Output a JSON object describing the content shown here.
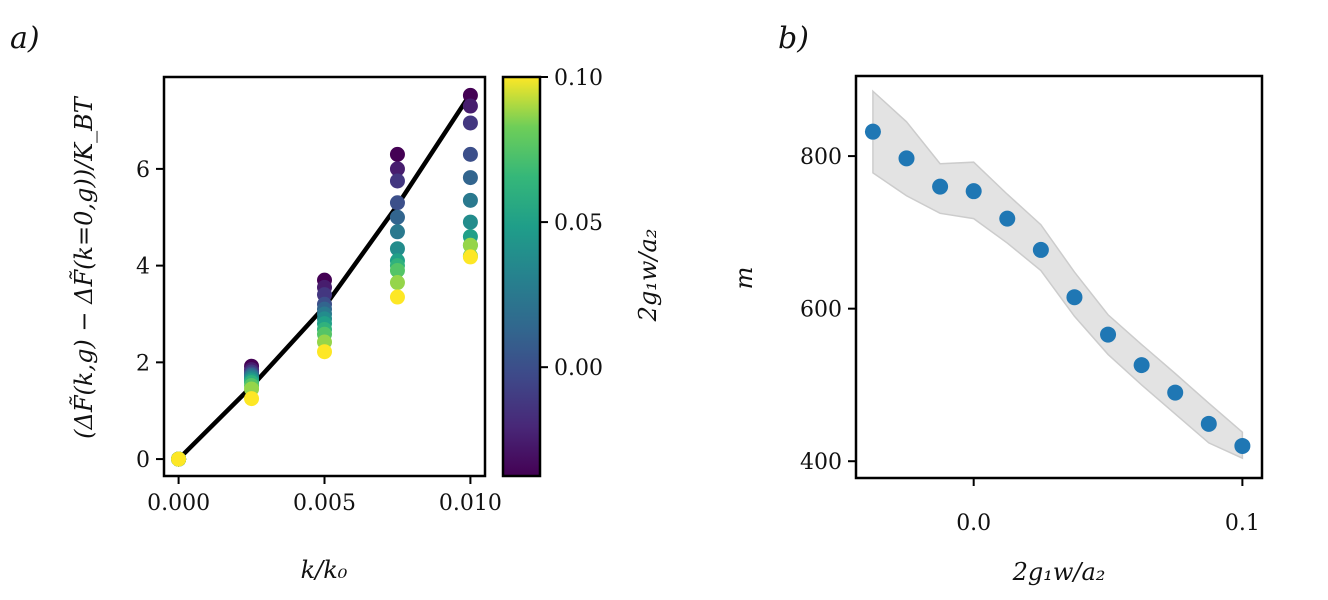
{
  "chart_data": [
    {
      "panel": "a)",
      "type": "scatter",
      "xlabel": "k/k₀",
      "ylabel": "(ΔF̃(k,g) − ΔF̃(k=0,g))/K_BT",
      "xlim": [
        -0.0005,
        0.0105
      ],
      "ylim": [
        -0.35,
        7.9
      ],
      "xticks": [
        0.0,
        0.005,
        0.01
      ],
      "xtick_labels": [
        "0.000",
        "0.005",
        "0.010"
      ],
      "yticks": [
        0,
        2,
        4,
        6
      ],
      "ytick_labels": [
        "0",
        "2",
        "4",
        "6"
      ],
      "grid": false,
      "colorbar": {
        "label": "2g₁w/a₂",
        "colormap": "viridis",
        "range": [
          -0.0375,
          0.1
        ],
        "ticks": [
          0.0,
          0.05,
          0.1
        ],
        "tick_labels": [
          "0.00",
          "0.05",
          "0.10"
        ]
      },
      "curve": {
        "color": "#000000",
        "x": [
          0,
          0.0025,
          0.005,
          0.0075,
          0.01
        ],
        "y": [
          0,
          1.5,
          3.15,
          5.25,
          7.55
        ]
      },
      "g_values": [
        -0.0375,
        -0.025,
        -0.0125,
        0.0,
        0.0125,
        0.025,
        0.0375,
        0.05,
        0.0625,
        0.075,
        0.0875,
        0.1
      ],
      "series_points": [
        {
          "x": 0.0,
          "y": [
            0,
            0,
            0,
            0,
            0,
            0,
            0,
            0,
            0,
            0,
            0,
            0
          ]
        },
        {
          "x": 0.0025,
          "y": [
            1.92,
            1.85,
            1.8,
            1.76,
            1.73,
            1.7,
            1.66,
            1.62,
            1.58,
            1.52,
            1.45,
            1.25
          ]
        },
        {
          "x": 0.005,
          "y": [
            3.7,
            3.55,
            3.4,
            3.2,
            3.1,
            3.0,
            2.9,
            2.8,
            2.68,
            2.58,
            2.42,
            2.22
          ]
        },
        {
          "x": 0.0075,
          "y": [
            6.3,
            6.0,
            5.75,
            5.3,
            5.0,
            4.7,
            4.35,
            4.1,
            4.0,
            3.9,
            3.65,
            3.35
          ]
        },
        {
          "x": 0.01,
          "y": [
            7.52,
            7.3,
            6.95,
            6.3,
            5.82,
            5.35,
            4.9,
            4.6,
            4.42,
            4.2,
            4.42,
            4.18
          ]
        }
      ]
    },
    {
      "panel": "b)",
      "type": "scatter",
      "xlabel": "2g₁w/a₂",
      "ylabel": "m",
      "xlim": [
        -0.0438,
        0.1073
      ],
      "ylim": [
        378,
        905
      ],
      "xticks": [
        0.0,
        0.1
      ],
      "xtick_labels": [
        "0.0",
        "0.1"
      ],
      "yticks": [
        400,
        600,
        800
      ],
      "ytick_labels": [
        "400",
        "600",
        "800"
      ],
      "grid": false,
      "point_color": "#1f77b4",
      "band_color": "#e3e3e3",
      "x": [
        -0.0375,
        -0.025,
        -0.0125,
        0.0,
        0.0125,
        0.025,
        0.0375,
        0.05,
        0.0625,
        0.075,
        0.0875,
        0.1
      ],
      "y": [
        832,
        797,
        760,
        754,
        718,
        677,
        615,
        566,
        526,
        490,
        449,
        420
      ],
      "band_upper": [
        885,
        845,
        790,
        792,
        750,
        710,
        648,
        592,
        553,
        515,
        476,
        438
      ],
      "band_lower": [
        778,
        748,
        725,
        718,
        686,
        650,
        590,
        540,
        500,
        462,
        424,
        404
      ]
    }
  ]
}
